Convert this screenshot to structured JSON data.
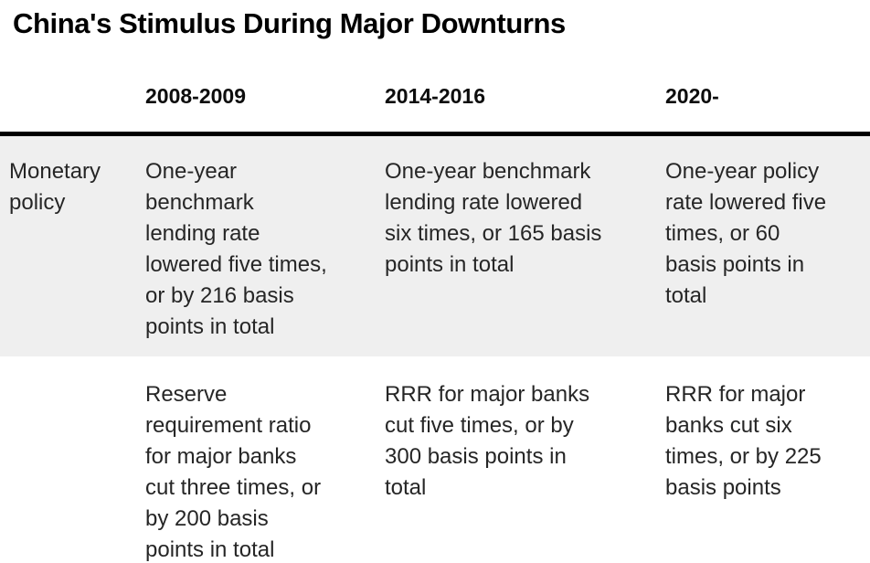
{
  "chart_data": {
    "type": "table",
    "title": "China's Stimulus During Major Downturns",
    "columns": [
      "",
      "2008-2009",
      "2014-2016",
      "2020-"
    ],
    "rows": [
      {
        "label": "Monetary policy",
        "cells": [
          "One-year benchmark lending rate lowered five times, or by 216 basis points in total",
          "One-year benchmark lending rate lowered six times, or 165 basis points in total",
          "One-year policy rate lowered five times, or 60 basis points in total"
        ]
      },
      {
        "label": "",
        "cells": [
          "Reserve requirement ratio for major banks cut three times, or by 200 basis points in total",
          "RRR for major banks cut five times, or by 300 basis points in total",
          "RRR for major banks cut six times, or by 225 basis points"
        ]
      }
    ],
    "layout": {
      "row_band_color": "#efefef",
      "rule_color": "#000000",
      "text_color": "#262626",
      "header_rule_thickness_px": 5
    }
  }
}
